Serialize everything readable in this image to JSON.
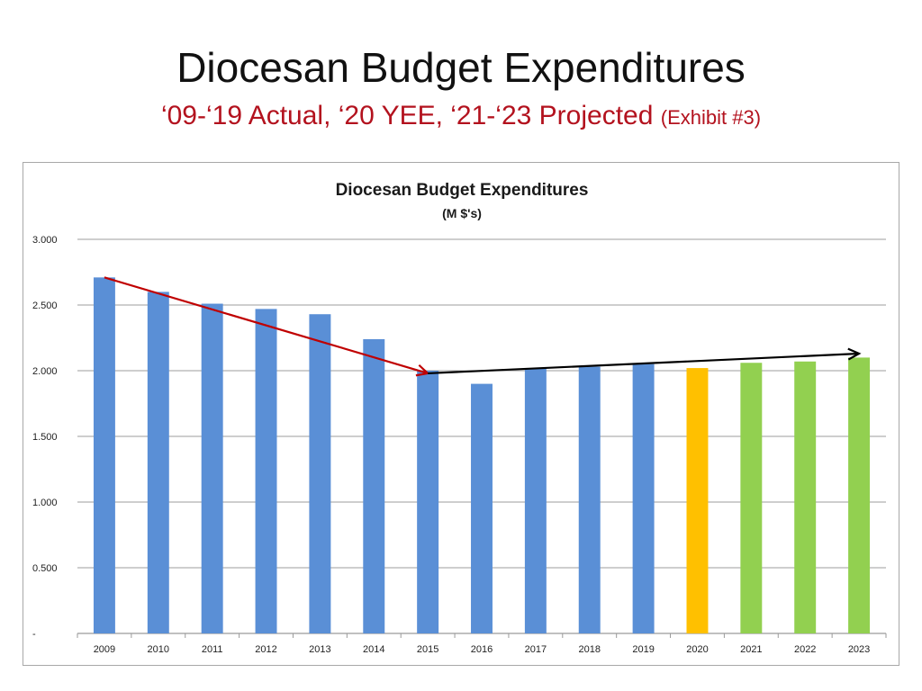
{
  "slide": {
    "title": "Diocesan Budget Expenditures",
    "subtitle_main": "‘09-‘19 Actual, ‘20 YEE, ‘21-‘23 Projected",
    "subtitle_exhibit": "(Exhibit #3)"
  },
  "colors": {
    "actual": "#5a8fd6",
    "estimate": "#ffc000",
    "projected": "#92d050",
    "decline_arrow": "#c00000",
    "flat_arrow": "#000000",
    "subtitle": "#b3121e"
  },
  "chart_data": {
    "type": "bar",
    "title": "Diocesan Budget Expenditures",
    "subtitle": "(M $'s)",
    "xlabel": "",
    "ylabel": "",
    "ylim": [
      0,
      3.0
    ],
    "yticks": [
      0,
      0.5,
      1.0,
      1.5,
      2.0,
      2.5,
      3.0
    ],
    "ytick_labels": [
      "-",
      "0.500",
      "1.000",
      "1.500",
      "2.000",
      "2.500",
      "3.000"
    ],
    "grid": true,
    "categories": [
      "2009",
      "2010",
      "2011",
      "2012",
      "2013",
      "2014",
      "2015",
      "2016",
      "2017",
      "2018",
      "2019",
      "2020",
      "2021",
      "2022",
      "2023"
    ],
    "values": [
      2.71,
      2.6,
      2.51,
      2.47,
      2.43,
      2.24,
      2.0,
      1.9,
      2.02,
      2.03,
      2.05,
      2.02,
      2.06,
      2.07,
      2.1
    ],
    "bar_kind": [
      "actual",
      "actual",
      "actual",
      "actual",
      "actual",
      "actual",
      "actual",
      "actual",
      "actual",
      "actual",
      "actual",
      "estimate",
      "projected",
      "projected",
      "projected"
    ],
    "trend_arrows": [
      {
        "name": "decline-trend-arrow",
        "color_key": "decline_arrow",
        "from": {
          "category": "2009",
          "value": 2.71
        },
        "to": {
          "category": "2015",
          "value": 1.98
        }
      },
      {
        "name": "flat-trend-arrow",
        "color_key": "flat_arrow",
        "from": {
          "category": "2015",
          "value": 1.98
        },
        "to": {
          "category": "2023",
          "value": 2.13
        }
      }
    ]
  }
}
